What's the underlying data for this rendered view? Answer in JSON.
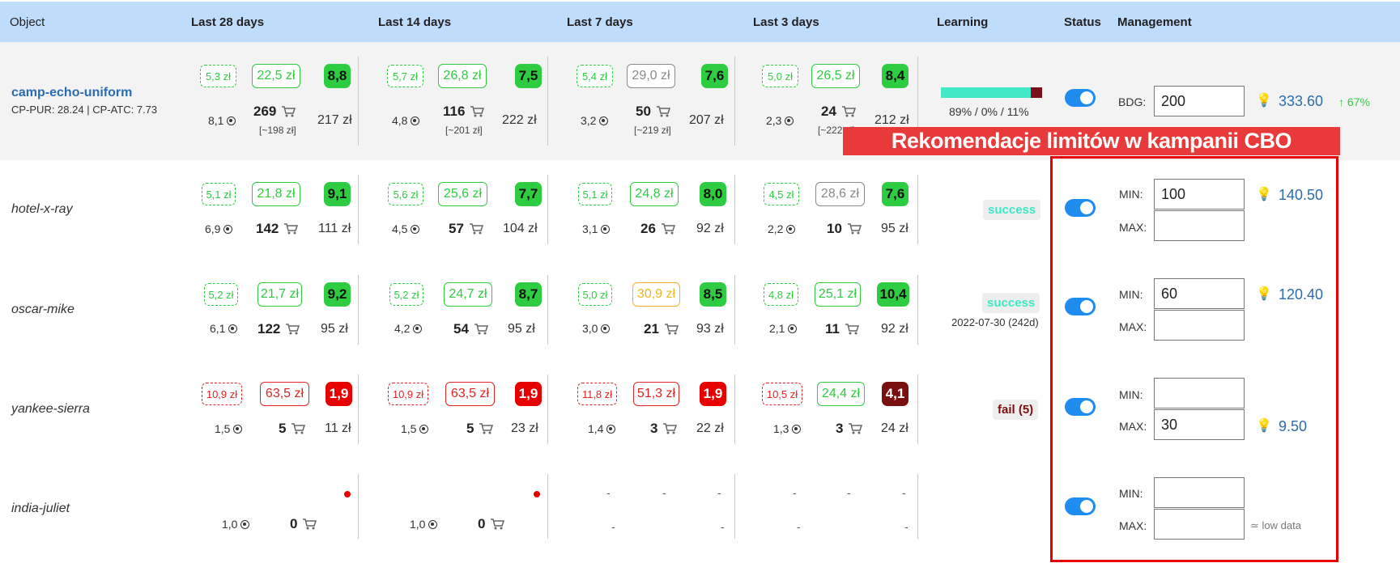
{
  "header": {
    "object": "Object",
    "last28": "Last 28 days",
    "last14": "Last 14 days",
    "last7": "Last 7 days",
    "last3": "Last 3 days",
    "learning": "Learning",
    "status": "Status",
    "management": "Management"
  },
  "rows": [
    {
      "name": "camp-echo-uniform",
      "sub": "CP-PUR: 28.24 | CP-ATC: 7.73",
      "periods": [
        {
          "a": "5,3 zł",
          "b": "22,5 zł",
          "score": "8,8",
          "reach": "8,1",
          "count": "269",
          "cost": "217 zł",
          "approx": "[~198 zł]"
        },
        {
          "a": "5,7 zł",
          "b": "26,8 zł",
          "score": "7,5",
          "reach": "4,8",
          "count": "116",
          "cost": "222 zł",
          "approx": "[~201 zł]"
        },
        {
          "a": "5,4 zł",
          "b": "29,0 zł",
          "score": "7,6",
          "reach": "3,2",
          "count": "50",
          "cost": "207 zł",
          "approx": "[~219 zł]"
        },
        {
          "a": "5,0 zł",
          "b": "26,5 zł",
          "score": "8,4",
          "reach": "2,3",
          "count": "24",
          "cost": "212 zł",
          "approx": "[~222 zł]"
        }
      ],
      "learning_text": "89% / 0% / 11%",
      "learning_pct": 0.89,
      "mgmt": {
        "label": "BDG:",
        "value": "200",
        "rec": "333.60",
        "trend": "↑ 67%"
      }
    },
    {
      "name": "hotel-x-ray",
      "periods": [
        {
          "a": "5,1 zł",
          "b": "21,8 zł",
          "score": "9,1",
          "reach": "6,9",
          "count": "142",
          "cost": "111 zł"
        },
        {
          "a": "5,6 zł",
          "b": "25,6 zł",
          "score": "7,7",
          "reach": "4,5",
          "count": "57",
          "cost": "104 zł"
        },
        {
          "a": "5,1 zł",
          "b": "24,8 zł",
          "score": "8,0",
          "reach": "3,1",
          "count": "26",
          "cost": "92 zł"
        },
        {
          "a": "4,5 zł",
          "b": "28,6 zł",
          "score": "7,6",
          "reach": "2,2",
          "count": "10",
          "cost": "95 zł"
        }
      ],
      "badge": "success",
      "mgmt": {
        "min_label": "MIN:",
        "max_label": "MAX:",
        "min": "100",
        "max": "",
        "rec": "140.50"
      }
    },
    {
      "name": "oscar-mike",
      "periods": [
        {
          "a": "5,2 zł",
          "b": "21,7 zł",
          "score": "9,2",
          "reach": "6,1",
          "count": "122",
          "cost": "95 zł"
        },
        {
          "a": "5,2 zł",
          "b": "24,7 zł",
          "score": "8,7",
          "reach": "4,2",
          "count": "54",
          "cost": "95 zł"
        },
        {
          "a": "5,0 zł",
          "b": "30,9 zł",
          "score": "8,5",
          "reach": "3,0",
          "count": "21",
          "cost": "93 zł"
        },
        {
          "a": "4,8 zł",
          "b": "25,1 zł",
          "score": "10,4",
          "reach": "2,1",
          "count": "11",
          "cost": "92 zł"
        }
      ],
      "badge": "success",
      "badge_date": "2022-07-30 (242d)",
      "mgmt": {
        "min_label": "MIN:",
        "max_label": "MAX:",
        "min": "60",
        "max": "",
        "rec": "120.40"
      }
    },
    {
      "name": "yankee-sierra",
      "periods": [
        {
          "a": "10,9 zł",
          "b": "63,5 zł",
          "score": "1,9",
          "reach": "1,5",
          "count": "5",
          "cost": "11 zł"
        },
        {
          "a": "10,9 zł",
          "b": "63,5 zł",
          "score": "1,9",
          "reach": "1,5",
          "count": "5",
          "cost": "23 zł"
        },
        {
          "a": "11,8 zł",
          "b": "51,3 zł",
          "score": "1,9",
          "reach": "1,4",
          "count": "3",
          "cost": "22 zł"
        },
        {
          "a": "10,5 zł",
          "b": "24,4 zł",
          "score": "4,1",
          "reach": "1,3",
          "count": "3",
          "cost": "24 zł"
        }
      ],
      "badge": "fail (5)",
      "mgmt": {
        "min_label": "MIN:",
        "max_label": "MAX:",
        "min": "",
        "max": "30",
        "rec": "9.50"
      }
    },
    {
      "name": "india-juliet",
      "periods": [
        {
          "reach": "1,0",
          "count": "0"
        },
        {
          "reach": "1,0",
          "count": "0"
        }
      ],
      "dash": "-",
      "mgmt": {
        "min_label": "MIN:",
        "max_label": "MAX:",
        "min": "",
        "max": "",
        "note": "≃ low data"
      }
    }
  ],
  "banner": "Rekomendacje limitów w kampanii CBO",
  "icons": [
    "dot-target-icon",
    "cart-icon",
    "bulb-icon",
    "toggle-switch"
  ],
  "colors": {
    "header": "#bfdcfb",
    "green": "#2ecc40",
    "red": "#e60000",
    "toggle": "#1f8cf0",
    "banner": "#e83a3a"
  }
}
